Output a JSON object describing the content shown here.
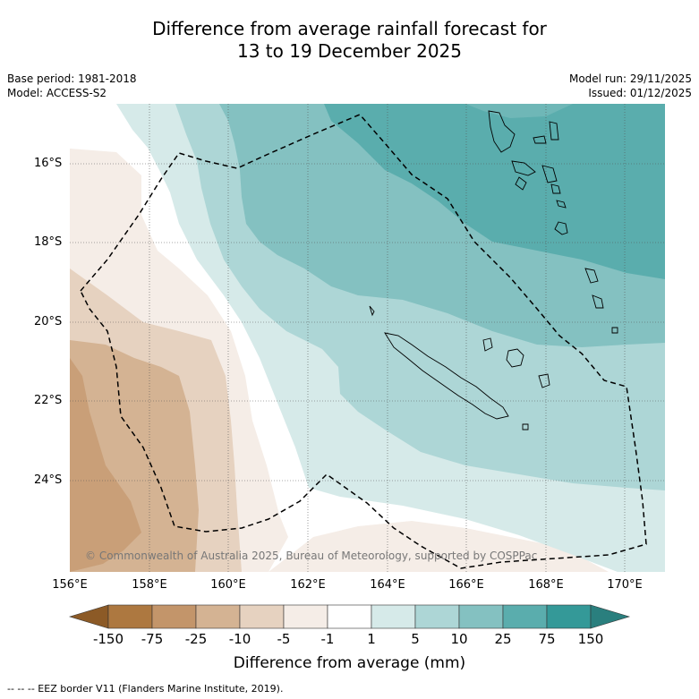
{
  "title_line1": "Difference from average rainfall forecast for",
  "title_line2": "13 to 19 December 2025",
  "base_period": "Base period: 1981-2018",
  "model": "Model: ACCESS-S2",
  "model_run": "Model run: 29/11/2025",
  "issued": "Issued: 01/12/2025",
  "latitudes": [
    "16°S",
    "18°S",
    "20°S",
    "22°S",
    "24°S"
  ],
  "longitudes": [
    "156°E",
    "158°E",
    "160°E",
    "162°E",
    "164°E",
    "166°E",
    "168°E",
    "170°E"
  ],
  "copyright": "© Commonwealth of Australia 2025, Bureau of Meteorology, supported by COSPPac",
  "colorbar": {
    "ticks": [
      "-150",
      "-75",
      "-25",
      "-10",
      "-5",
      "-1",
      "1",
      "5",
      "10",
      "25",
      "75",
      "150"
    ],
    "colors": [
      "#8c5a26",
      "#ad7840",
      "#c3956a",
      "#d4b393",
      "#e6d2c0",
      "#f5ede7",
      "#ffffff",
      "#d6eae9",
      "#add6d6",
      "#84c1c1",
      "#5aadad",
      "#349998",
      "#2a7f7e"
    ],
    "title": "Difference from average (mm)"
  },
  "legend": "--  --  -- EEZ border V11 (Flanders Marine Institute, 2019)."
}
